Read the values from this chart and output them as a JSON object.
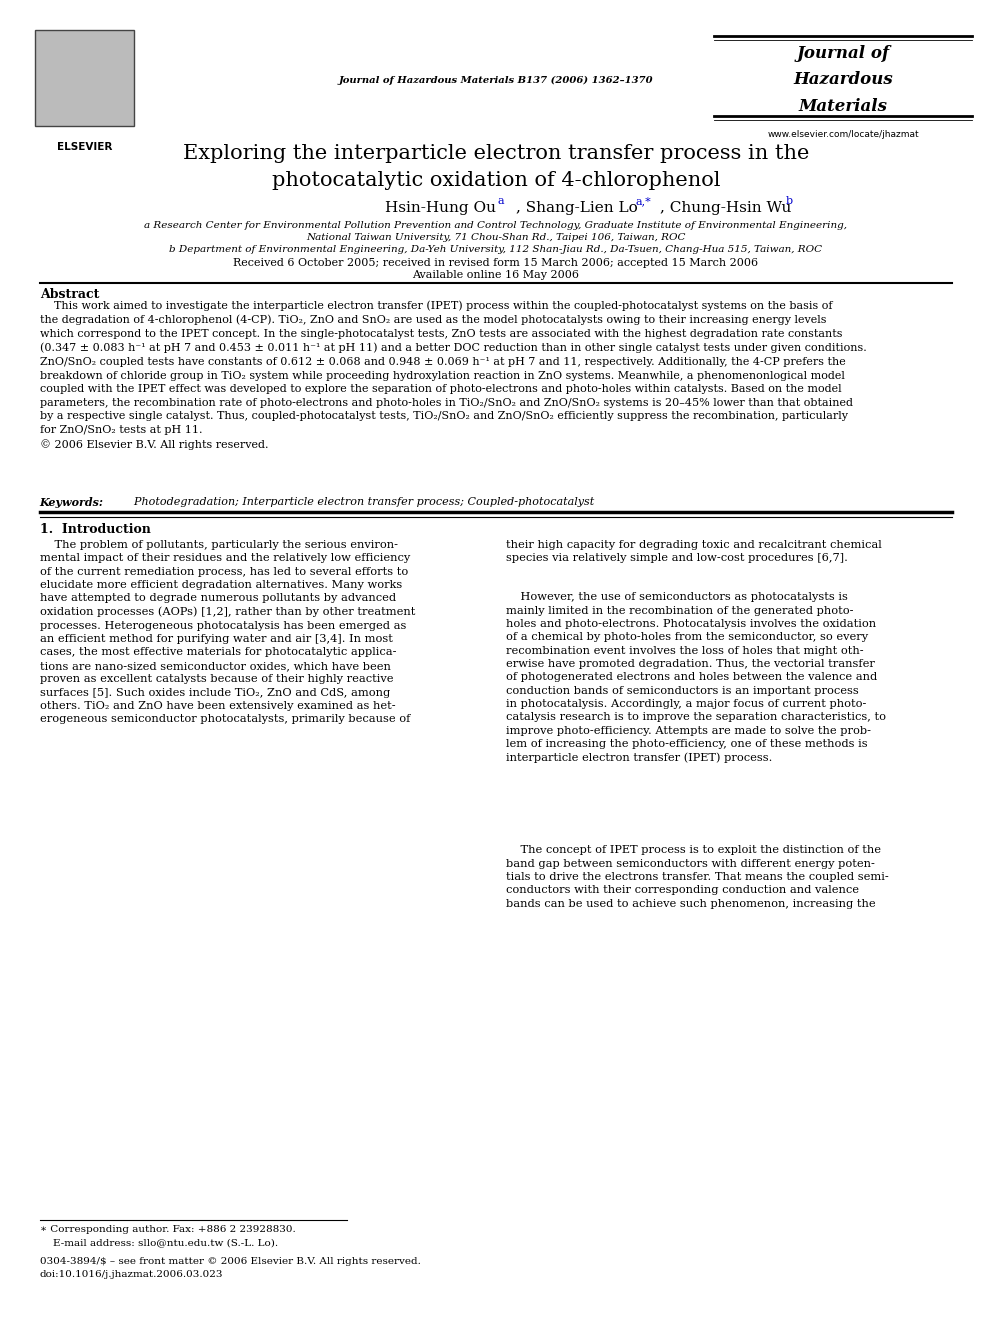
{
  "page_width": 9.92,
  "page_height": 13.23,
  "bg_color": "#ffffff",
  "journal_center": "Journal of Hazardous Materials B137 (2006) 1362–1370",
  "journal_right_1": "Journal of",
  "journal_right_2": "Hazardous",
  "journal_right_3": "Materials",
  "journal_right_url": "www.elsevier.com/locate/jhazmat",
  "article_title": "Exploring the interparticle electron transfer process in the\nphotocatalytic oxidation of 4-chlorophenol",
  "author1": "Hsin-Hung Ou",
  "author2": ", Shang-Lien Lo",
  "author3": ", Chung-Hsin Wu",
  "sup1": "a",
  "sup2": "a,*",
  "sup3": "b",
  "affil_a_1": "a Research Center for Environmental Pollution Prevention and Control Technology, Graduate Institute of Environmental Engineering,",
  "affil_a_2": "National Taiwan University, 71 Chou-Shan Rd., Taipei 106, Taiwan, ROC",
  "affil_b": "b Department of Environmental Engineering, Da-Yeh University, 112 Shan-Jiau Rd., Da-Tsuen, Chang-Hua 515, Taiwan, ROC",
  "received": "Received 6 October 2005; received in revised form 15 March 2006; accepted 15 March 2006",
  "available": "Available online 16 May 2006",
  "abstract_title": "Abstract",
  "abstract_line1": "    This work aimed to investigate the interparticle electron transfer (IPET) process within the coupled-photocatalyst systems on the basis of",
  "abstract_line2": "the degradation of 4-chlorophenol (4-CP). TiO₂, ZnO and SnO₂ are used as the model photocatalysts owing to their increasing energy levels",
  "abstract_line3": "which correspond to the IPET concept. In the single-photocatalyst tests, ZnO tests are associated with the highest degradation rate constants",
  "abstract_line4": "(0.347 ± 0.083 h⁻¹ at pH 7 and 0.453 ± 0.011 h⁻¹ at pH 11) and a better DOC reduction than in other single catalyst tests under given conditions.",
  "abstract_line5": "ZnO/SnO₂ coupled tests have constants of 0.612 ± 0.068 and 0.948 ± 0.069 h⁻¹ at pH 7 and 11, respectively. Additionally, the 4-CP prefers the",
  "abstract_line6": "breakdown of chloride group in TiO₂ system while proceeding hydroxylation reaction in ZnO systems. Meanwhile, a phenomenonlogical model",
  "abstract_line7": "coupled with the IPET effect was developed to explore the separation of photo-electrons and photo-holes within catalysts. Based on the model",
  "abstract_line8": "parameters, the recombination rate of photo-electrons and photo-holes in TiO₂/SnO₂ and ZnO/SnO₂ systems is 20–45% lower than that obtained",
  "abstract_line9": "by a respective single catalyst. Thus, coupled-photocatalyst tests, TiO₂/SnO₂ and ZnO/SnO₂ efficiently suppress the recombination, particularly",
  "abstract_line10": "for ZnO/SnO₂ tests at pH 11.",
  "abstract_line11": "© 2006 Elsevier B.V. All rights reserved.",
  "keywords_label": "Keywords:",
  "keywords_text": "  Photodegradation; Interparticle electron transfer process; Coupled-photocatalyst",
  "section1_title": "1.  Introduction",
  "col1_lines": [
    "    The problem of pollutants, particularly the serious environ-",
    "mental impact of their residues and the relatively low efficiency",
    "of the current remediation process, has led to several efforts to",
    "elucidate more efficient degradation alternatives. Many works",
    "have attempted to degrade numerous pollutants by advanced",
    "oxidation processes (AOPs) [1,2], rather than by other treatment",
    "processes. Heterogeneous photocatalysis has been emerged as",
    "an efficient method for purifying water and air [3,4]. In most",
    "cases, the most effective materials for photocatalytic applica-",
    "tions are nano-sized semiconductor oxides, which have been",
    "proven as excellent catalysts because of their highly reactive",
    "surfaces [5]. Such oxides include TiO₂, ZnO and CdS, among",
    "others. TiO₂ and ZnO have been extensively examined as het-",
    "erogeneous semiconductor photocatalysts, primarily because of"
  ],
  "col2_lines_p1": [
    "their high capacity for degrading toxic and recalcitrant chemical",
    "species via relatively simple and low-cost procedures [6,7]."
  ],
  "col2_lines_p2": [
    "    However, the use of semiconductors as photocatalysts is",
    "mainly limited in the recombination of the generated photo-",
    "holes and photo-electrons. Photocatalysis involves the oxidation",
    "of a chemical by photo-holes from the semiconductor, so every",
    "recombination event involves the loss of holes that might oth-",
    "erwise have promoted degradation. Thus, the vectorial transfer",
    "of photogenerated electrons and holes between the valence and",
    "conduction bands of semiconductors is an important process",
    "in photocatalysis. Accordingly, a major focus of current photo-",
    "catalysis research is to improve the separation characteristics, to",
    "improve photo-efficiency. Attempts are made to solve the prob-",
    "lem of increasing the photo-efficiency, one of these methods is",
    "interparticle electron transfer (IPET) process."
  ],
  "col2_lines_p3": [
    "    The concept of IPET process is to exploit the distinction of the",
    "band gap between semiconductors with different energy poten-",
    "tials to drive the electrons transfer. That means the coupled semi-",
    "conductors with their corresponding conduction and valence",
    "bands can be used to achieve such phenomenon, increasing the"
  ],
  "footer_star": "∗ Corresponding author. Fax: +886 2 23928830.",
  "footer_email": "    E-mail address: sllo@ntu.edu.tw (S.-L. Lo).",
  "footer_copy": "0304-3894/$ – see front matter © 2006 Elsevier B.V. All rights reserved.",
  "footer_doi": "doi:10.1016/j.jhazmat.2006.03.023",
  "text_color": "#000000",
  "blue_color": "#0000cc"
}
